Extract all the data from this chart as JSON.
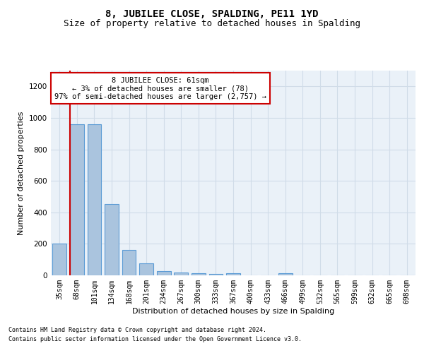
{
  "title": "8, JUBILEE CLOSE, SPALDING, PE11 1YD",
  "subtitle": "Size of property relative to detached houses in Spalding",
  "xlabel": "Distribution of detached houses by size in Spalding",
  "ylabel": "Number of detached properties",
  "footnote1": "Contains HM Land Registry data © Crown copyright and database right 2024.",
  "footnote2": "Contains public sector information licensed under the Open Government Licence v3.0.",
  "categories": [
    "35sqm",
    "68sqm",
    "101sqm",
    "134sqm",
    "168sqm",
    "201sqm",
    "234sqm",
    "267sqm",
    "300sqm",
    "333sqm",
    "367sqm",
    "400sqm",
    "433sqm",
    "466sqm",
    "499sqm",
    "532sqm",
    "565sqm",
    "599sqm",
    "632sqm",
    "665sqm",
    "698sqm"
  ],
  "values": [
    200,
    960,
    960,
    455,
    160,
    75,
    25,
    20,
    15,
    10,
    15,
    0,
    0,
    15,
    0,
    0,
    0,
    0,
    0,
    0,
    0
  ],
  "bar_color": "#aac4de",
  "bar_edge_color": "#5b9bd5",
  "highlight_color": "#cc0000",
  "annotation_box_color": "#ffffff",
  "annotation_box_edge": "#cc0000",
  "annotation_text": "8 JUBILEE CLOSE: 61sqm\n← 3% of detached houses are smaller (78)\n97% of semi-detached houses are larger (2,757) →",
  "ylim": [
    0,
    1300
  ],
  "yticks": [
    0,
    200,
    400,
    600,
    800,
    1000,
    1200
  ],
  "grid_color": "#d0dce8",
  "bg_color": "#eaf1f8",
  "title_fontsize": 10,
  "subtitle_fontsize": 9,
  "label_fontsize": 8,
  "tick_fontsize": 7
}
